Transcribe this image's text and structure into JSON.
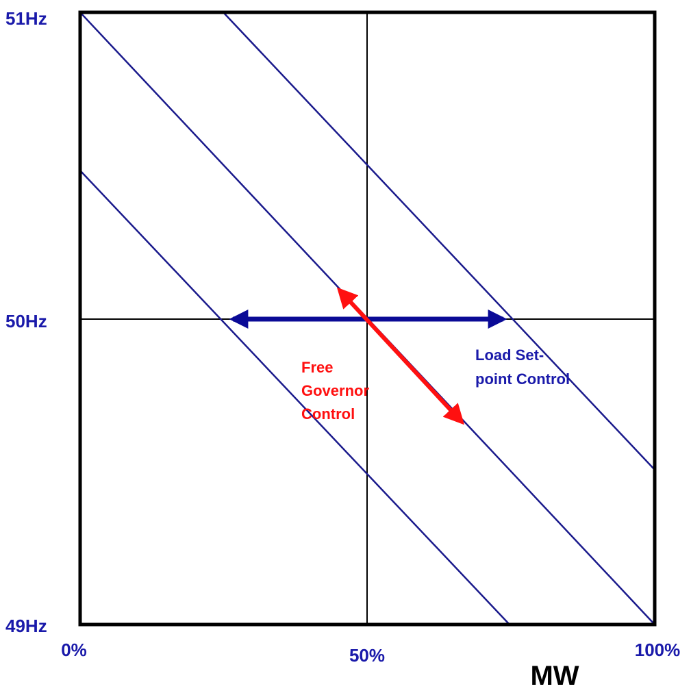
{
  "y_axis": {
    "labels": [
      "51Hz",
      "50Hz",
      "49Hz"
    ]
  },
  "x_axis": {
    "labels": [
      "0%",
      "50%",
      "100%"
    ],
    "title": "MW"
  },
  "annotations": [
    {
      "lines": [
        "Free",
        "Governor",
        "Control"
      ]
    },
    {
      "lines": [
        "Load Set-",
        "point Control"
      ]
    }
  ]
}
